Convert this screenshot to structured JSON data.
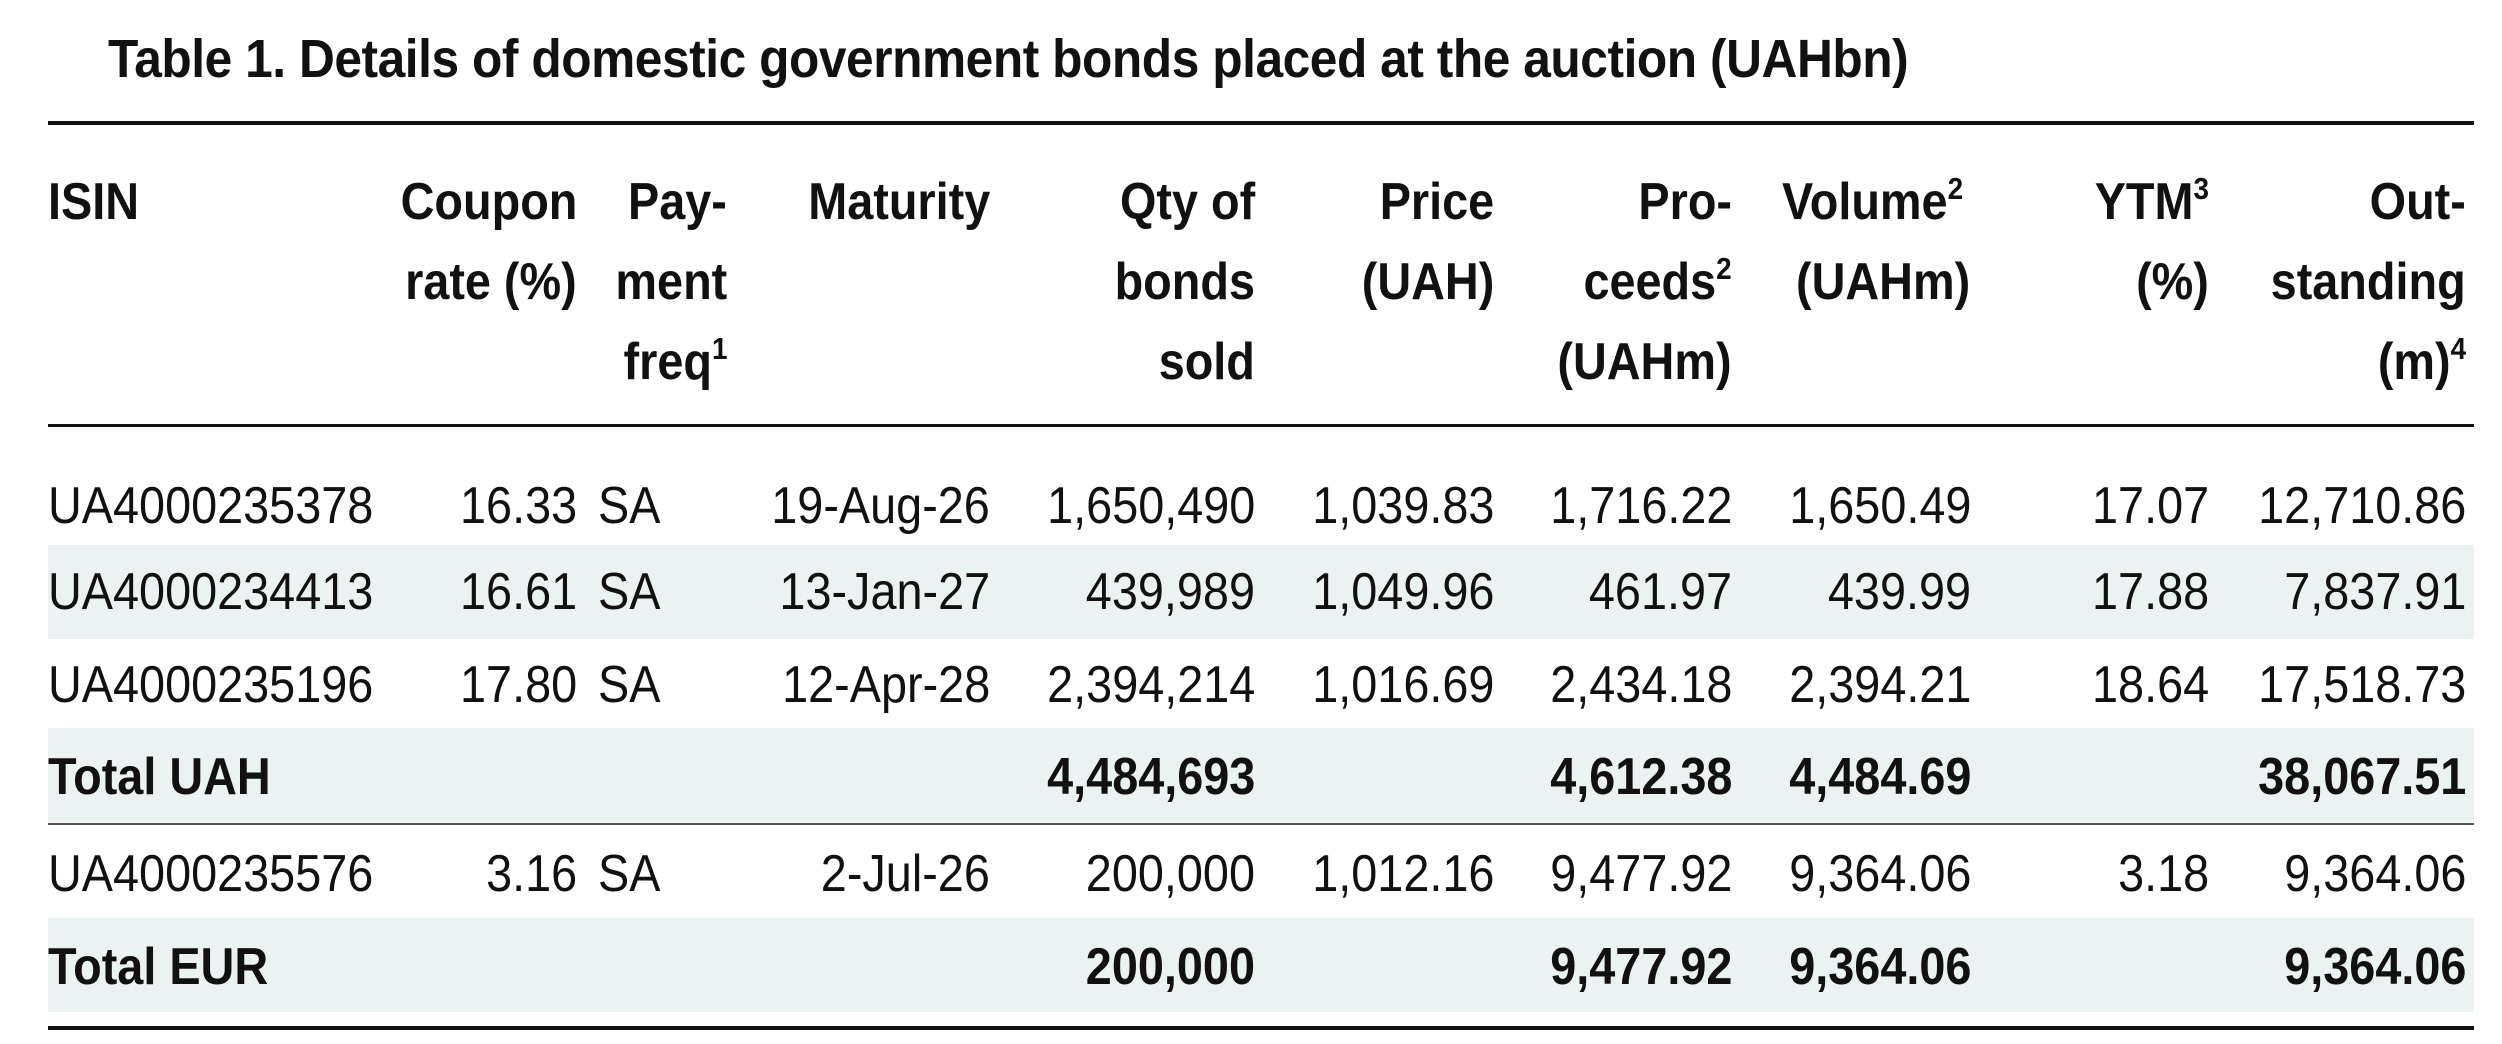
{
  "title": "Table 1. Details of domestic government bonds placed at the auction (UAHbn)",
  "header": {
    "isin": "ISIN",
    "coupon": [
      "Coupon",
      "rate (%)"
    ],
    "payment": [
      "Pay-",
      "ment",
      "freq",
      "1"
    ],
    "maturity": "Maturity",
    "qty": [
      "Qty of",
      "bonds",
      "sold"
    ],
    "price": [
      "Price",
      "(UAH)"
    ],
    "proceeds": [
      "Pro-",
      "ceeds",
      "2",
      "(UAHm)"
    ],
    "volume": [
      "Volume",
      "2",
      "(UAHm)"
    ],
    "ytm": [
      "YTM",
      "3",
      "(%)"
    ],
    "outstanding": [
      "Out-",
      "standing",
      "(m)",
      "4"
    ]
  },
  "rows": [
    {
      "isin": "UA4000235378",
      "coupon": "16.33",
      "freq": "SA",
      "maturity": "19-Aug-26",
      "qty": "1,650,490",
      "price": "1,039.83",
      "proceeds": "1,716.22",
      "volume": "1,650.49",
      "ytm": "17.07",
      "outstanding": "12,710.86"
    },
    {
      "isin": "UA4000234413",
      "coupon": "16.61",
      "freq": "SA",
      "maturity": "13-Jan-27",
      "qty": "439,989",
      "price": "1,049.96",
      "proceeds": "461.97",
      "volume": "439.99",
      "ytm": "17.88",
      "outstanding": "7,837.91"
    },
    {
      "isin": "UA4000235196",
      "coupon": "17.80",
      "freq": "SA",
      "maturity": "12-Apr-28",
      "qty": "2,394,214",
      "price": "1,016.69",
      "proceeds": "2,434.18",
      "volume": "2,394.21",
      "ytm": "18.64",
      "outstanding": "17,518.73"
    },
    {
      "isin": "UA4000235576",
      "coupon": "3.16",
      "freq": "SA",
      "maturity": "2-Jul-26",
      "qty": "200,000",
      "price": "1,012.16",
      "proceeds": "9,477.92",
      "volume": "9,364.06",
      "ytm": "3.18",
      "outstanding": "9,364.06"
    }
  ],
  "totals": [
    {
      "label": "Total UAH",
      "qty": "4,484,693",
      "proceeds": "4,612.38",
      "volume": "4,484.69",
      "outstanding": "38,067.51"
    },
    {
      "label": "Total EUR",
      "qty": "200,000",
      "proceeds": "9,477.92",
      "volume": "9,364.06",
      "outstanding": "9,364.06"
    }
  ],
  "colors": {
    "band": "#eaf3f2",
    "text": "#111111",
    "rule": "#111111"
  }
}
